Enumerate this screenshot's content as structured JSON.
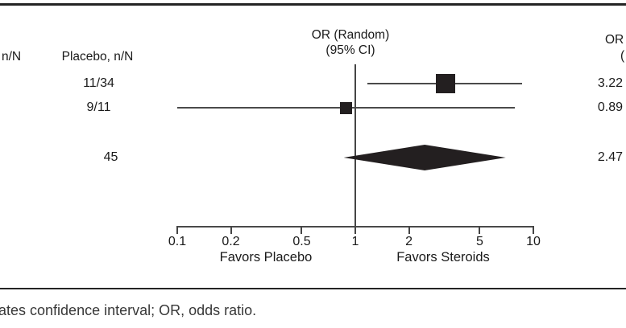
{
  "figure": {
    "headers": {
      "left_partial": "n/N",
      "placebo": "Placebo, n/N",
      "or_center_line1": "OR (Random)",
      "or_center_line2": "(95% CI)",
      "or_right_line1": "OR",
      "or_right_line2": "("
    },
    "footnote": "ates confidence interval; OR, odds ratio."
  },
  "chart_data": {
    "type": "forest",
    "x_scale": "log",
    "xlim": [
      0.1,
      10
    ],
    "x_ticks": [
      0.1,
      0.2,
      0.5,
      1,
      2,
      5,
      10
    ],
    "null_line": 1,
    "favors_left": "Favors Placebo",
    "favors_right": "Favors Steroids",
    "rows": [
      {
        "kind": "study",
        "placebo_nN": "11/34",
        "or": 3.22,
        "ci_low": 1.17,
        "ci_high": 8.6,
        "marker_px": 24
      },
      {
        "kind": "study",
        "placebo_nN": "9/11",
        "or": 0.89,
        "ci_low": 0.1,
        "ci_high": 7.9,
        "marker_px": 15
      },
      {
        "kind": "summary",
        "placebo_nN": "45",
        "or": 2.47,
        "ci_low": 0.86,
        "ci_high": 7.0
      }
    ]
  },
  "colors": {
    "ink": "#231f20",
    "line": "#4a4a4a"
  }
}
